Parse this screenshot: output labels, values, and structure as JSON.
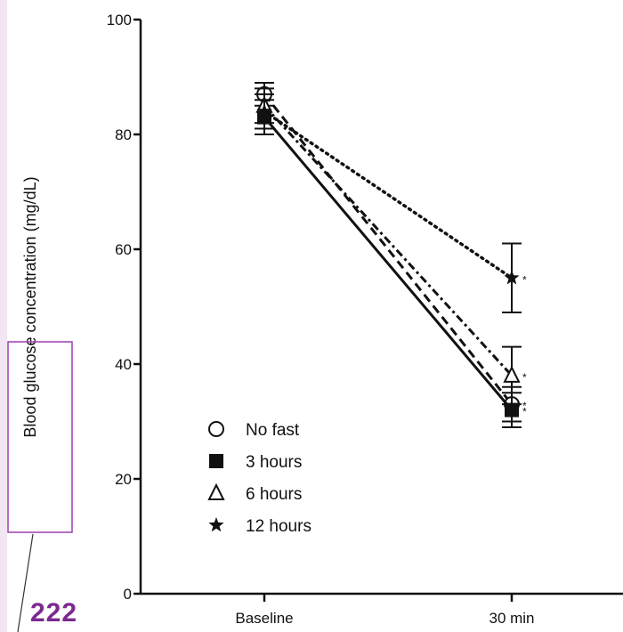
{
  "page": {
    "number": "222",
    "callout_color": "#9b3fb0",
    "band_color": "#f3e6f3"
  },
  "chart_data": {
    "type": "line",
    "title": "",
    "xlabel": "",
    "ylabel": "Blood glucose concentration (mg/dL)",
    "categories": [
      "Baseline",
      "30 min"
    ],
    "ylim": [
      0,
      100
    ],
    "yticks": [
      "0",
      "20",
      "40",
      "60",
      "80",
      "100"
    ],
    "grid": false,
    "legend_position": "bottom-left",
    "significance_marker": "*",
    "series": [
      {
        "name": "No fast",
        "marker": "open-circle",
        "line": "dashed",
        "values": [
          87,
          33
        ],
        "errors": [
          2,
          3
        ],
        "significant": [
          false,
          true
        ]
      },
      {
        "name": "3 hours",
        "marker": "filled-square",
        "line": "solid",
        "values": [
          83,
          32
        ],
        "errors": [
          3,
          3
        ],
        "significant": [
          false,
          true
        ]
      },
      {
        "name": "6 hours",
        "marker": "open-triangle",
        "line": "dash-dot",
        "values": [
          85,
          38
        ],
        "errors": [
          3,
          5
        ],
        "significant": [
          false,
          true
        ]
      },
      {
        "name": "12 hours",
        "marker": "star",
        "line": "dotted",
        "values": [
          84,
          55
        ],
        "errors": [
          3,
          6
        ],
        "significant": [
          false,
          true
        ]
      }
    ]
  }
}
